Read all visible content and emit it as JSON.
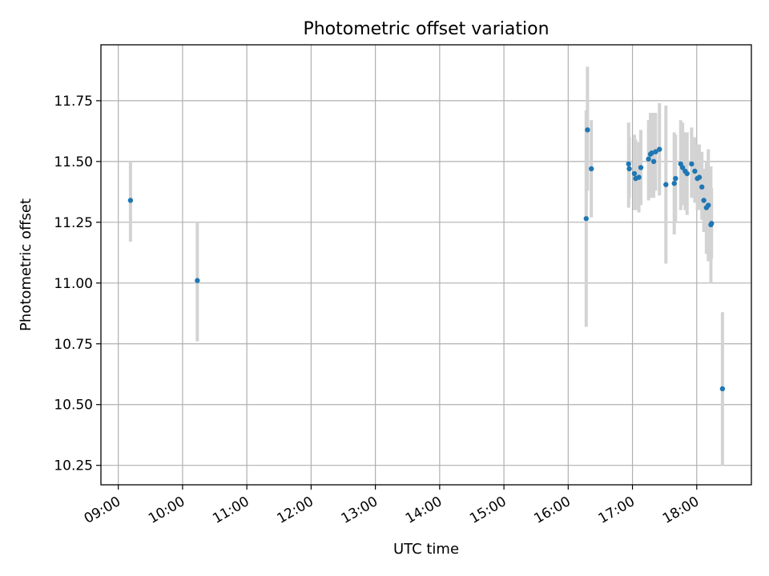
{
  "chart_data": {
    "type": "scatter",
    "title": "Photometric offset variation",
    "xlabel": "UTC time",
    "ylabel": "Photometric offset",
    "x_unit": "hours (UTC)",
    "xlim": [
      8.73,
      18.85
    ],
    "ylim": [
      10.17,
      11.98
    ],
    "x_ticks": [
      {
        "value": 9,
        "label": "09:00"
      },
      {
        "value": 10,
        "label": "10:00"
      },
      {
        "value": 11,
        "label": "11:00"
      },
      {
        "value": 12,
        "label": "12:00"
      },
      {
        "value": 13,
        "label": "13:00"
      },
      {
        "value": 14,
        "label": "14:00"
      },
      {
        "value": 15,
        "label": "15:00"
      },
      {
        "value": 16,
        "label": "16:00"
      },
      {
        "value": 17,
        "label": "17:00"
      },
      {
        "value": 18,
        "label": "18:00"
      }
    ],
    "y_ticks": [
      {
        "value": 10.25,
        "label": "10.25"
      },
      {
        "value": 10.5,
        "label": "10.50"
      },
      {
        "value": 10.75,
        "label": "10.75"
      },
      {
        "value": 11.0,
        "label": "11.00"
      },
      {
        "value": 11.25,
        "label": "11.25"
      },
      {
        "value": 11.5,
        "label": "11.50"
      },
      {
        "value": 11.75,
        "label": "11.75"
      }
    ],
    "grid": true,
    "marker_color": "#1f77b4",
    "errorbar_color": "#d3d3d3",
    "points": [
      {
        "x": 9.19,
        "y": 11.34,
        "low": 11.17,
        "high": 11.5
      },
      {
        "x": 10.23,
        "y": 11.01,
        "low": 10.76,
        "high": 11.25
      },
      {
        "x": 16.28,
        "y": 11.265,
        "low": 10.82,
        "high": 11.71
      },
      {
        "x": 16.3,
        "y": 11.63,
        "low": 11.38,
        "high": 11.89
      },
      {
        "x": 16.36,
        "y": 11.47,
        "low": 11.27,
        "high": 11.67
      },
      {
        "x": 16.94,
        "y": 11.49,
        "low": 11.31,
        "high": 11.66
      },
      {
        "x": 16.95,
        "y": 11.47,
        "low": 11.35,
        "high": 11.6
      },
      {
        "x": 17.03,
        "y": 11.45,
        "low": 11.3,
        "high": 11.61
      },
      {
        "x": 17.05,
        "y": 11.43,
        "low": 11.3,
        "high": 11.59
      },
      {
        "x": 17.1,
        "y": 11.435,
        "low": 11.29,
        "high": 11.58
      },
      {
        "x": 17.13,
        "y": 11.475,
        "low": 11.32,
        "high": 11.63
      },
      {
        "x": 17.25,
        "y": 11.51,
        "low": 11.34,
        "high": 11.67
      },
      {
        "x": 17.28,
        "y": 11.53,
        "low": 11.35,
        "high": 11.7
      },
      {
        "x": 17.3,
        "y": 11.535,
        "low": 11.38,
        "high": 11.7
      },
      {
        "x": 17.33,
        "y": 11.5,
        "low": 11.35,
        "high": 11.7
      },
      {
        "x": 17.36,
        "y": 11.54,
        "low": 11.38,
        "high": 11.7
      },
      {
        "x": 17.42,
        "y": 11.55,
        "low": 11.36,
        "high": 11.74
      },
      {
        "x": 17.52,
        "y": 11.405,
        "low": 11.08,
        "high": 11.73
      },
      {
        "x": 17.65,
        "y": 11.41,
        "low": 11.2,
        "high": 11.62
      },
      {
        "x": 17.67,
        "y": 11.43,
        "low": 11.25,
        "high": 11.61
      },
      {
        "x": 17.75,
        "y": 11.49,
        "low": 11.3,
        "high": 11.67
      },
      {
        "x": 17.78,
        "y": 11.475,
        "low": 11.32,
        "high": 11.66
      },
      {
        "x": 17.82,
        "y": 11.46,
        "low": 11.3,
        "high": 11.62
      },
      {
        "x": 17.85,
        "y": 11.45,
        "low": 11.28,
        "high": 11.62
      },
      {
        "x": 17.92,
        "y": 11.49,
        "low": 11.35,
        "high": 11.64
      },
      {
        "x": 17.97,
        "y": 11.46,
        "low": 11.33,
        "high": 11.6
      },
      {
        "x": 18.01,
        "y": 11.43,
        "low": 11.3,
        "high": 11.57
      },
      {
        "x": 18.04,
        "y": 11.435,
        "low": 11.3,
        "high": 11.57
      },
      {
        "x": 18.08,
        "y": 11.395,
        "low": 11.26,
        "high": 11.54
      },
      {
        "x": 18.11,
        "y": 11.34,
        "low": 11.21,
        "high": 11.47
      },
      {
        "x": 18.15,
        "y": 11.31,
        "low": 11.12,
        "high": 11.5
      },
      {
        "x": 18.18,
        "y": 11.32,
        "low": 11.09,
        "high": 11.55
      },
      {
        "x": 18.22,
        "y": 11.24,
        "low": 11.0,
        "high": 11.48
      },
      {
        "x": 18.23,
        "y": 11.245,
        "low": 11.1,
        "high": 11.39
      },
      {
        "x": 18.4,
        "y": 10.565,
        "low": 10.25,
        "high": 10.88
      }
    ]
  }
}
